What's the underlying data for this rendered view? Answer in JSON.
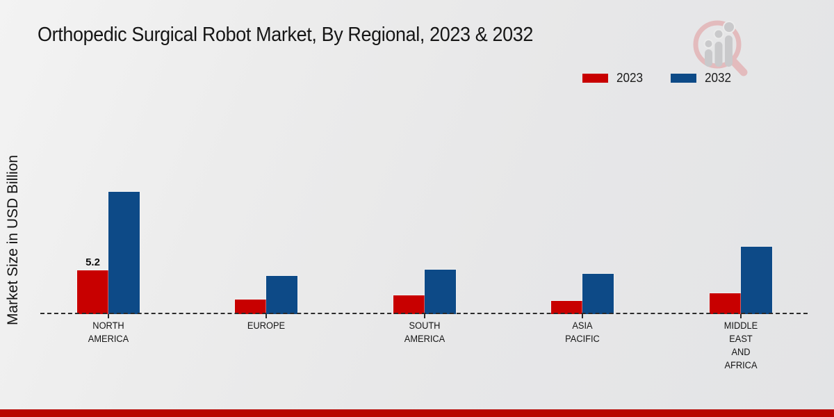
{
  "title": "Orthopedic Surgical Robot Market, By Regional, 2023 & 2032",
  "y_axis_label": "Market Size in USD Billion",
  "legend": {
    "items": [
      {
        "label": "2023",
        "color": "#c80000"
      },
      {
        "label": "2032",
        "color": "#0d4a87"
      }
    ]
  },
  "colors": {
    "bar_2023": "#c80000",
    "bar_2032": "#0d4a87",
    "footer_stripe": "#b80500",
    "axis_line": "#2b2b2b",
    "logo_ring": "#e3b7b9",
    "logo_bars": "#c6c6c8"
  },
  "logo": {
    "name": "market-research-magnifier-logo"
  },
  "chart_data": {
    "type": "bar",
    "categories": [
      "NORTH AMERICA",
      "EUROPE",
      "SOUTH AMERICA",
      "ASIA PACIFIC",
      "MIDDLE EAST AND AFRICA"
    ],
    "category_display": [
      "NORTH\nAMERICA",
      "EUROPE",
      "SOUTH\nAMERICA",
      "ASIA\nPACIFIC",
      "MIDDLE\nEAST\nAND\nAFRICA"
    ],
    "series": [
      {
        "name": "2023",
        "color": "#c80000",
        "values": [
          5.2,
          1.7,
          2.2,
          1.6,
          2.5
        ]
      },
      {
        "name": "2032",
        "color": "#0d4a87",
        "values": [
          14.5,
          4.5,
          5.3,
          4.8,
          8.0
        ]
      }
    ],
    "annotations": [
      {
        "series": "2023",
        "category": "NORTH AMERICA",
        "category_index": 0,
        "text": "5.2"
      }
    ],
    "title": "Orthopedic Surgical Robot Market, By Regional, 2023 & 2032",
    "xlabel": "",
    "ylabel": "Market Size in USD Billion",
    "ylim": [
      0,
      15
    ],
    "y_ticks_visible": false,
    "grid": false,
    "baseline_style": "dashed",
    "legend_position": "top-right"
  }
}
